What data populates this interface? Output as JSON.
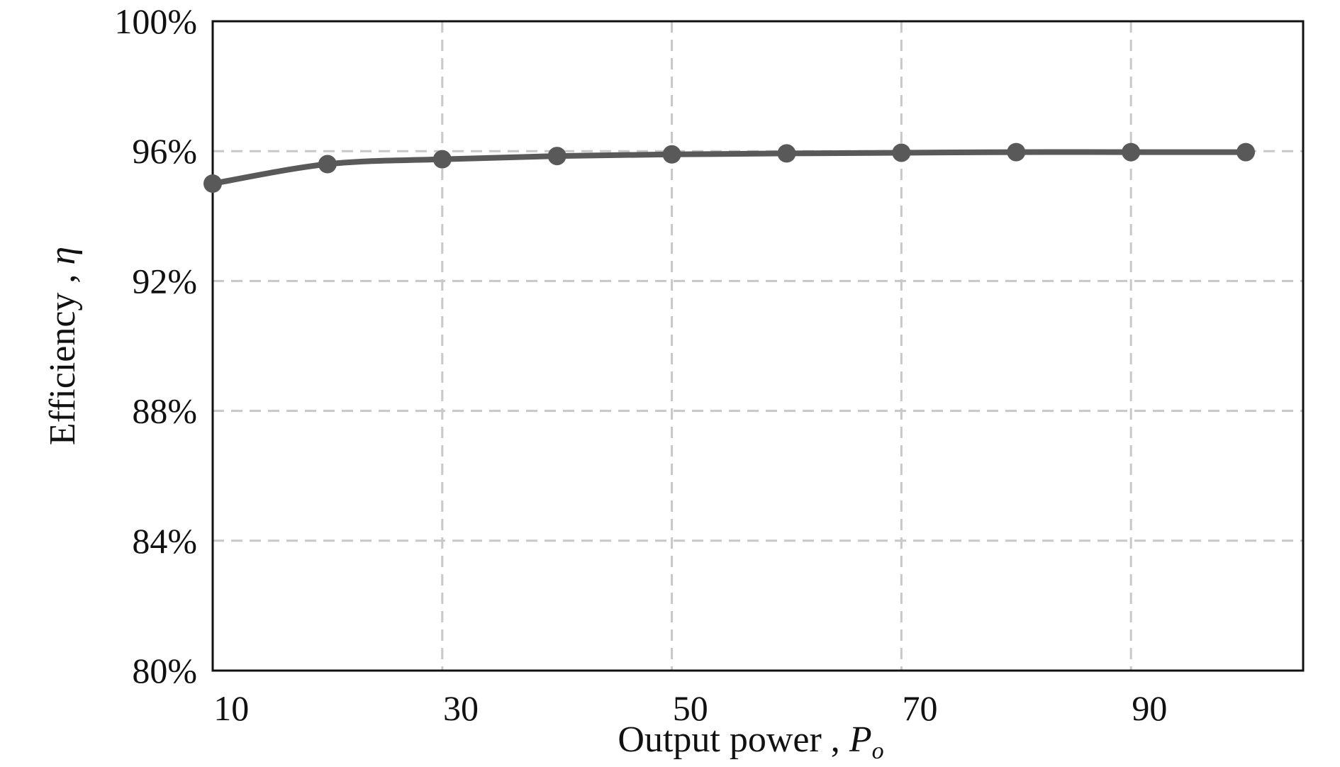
{
  "chart_data": {
    "type": "line",
    "title": "",
    "xlabel": "Output power , ",
    "xlabel_symbol": "P",
    "xlabel_subscript": "o",
    "ylabel": "Efficiency , ",
    "ylabel_symbol": "η",
    "xlim": [
      9,
      104
    ],
    "ylim": [
      0.8,
      1.0
    ],
    "x_ticks": [
      10,
      30,
      50,
      70,
      90
    ],
    "x_tick_labels": [
      "10",
      "30",
      "50",
      "70",
      "90"
    ],
    "y_ticks": [
      0.8,
      0.84,
      0.88,
      0.92,
      0.96,
      1.0
    ],
    "y_tick_labels": [
      "80%",
      "84%",
      "88%",
      "92%",
      "96%",
      "100%"
    ],
    "grid": true,
    "series": [
      {
        "x": [
          9,
          19,
          29,
          39,
          49,
          59,
          69,
          79,
          89,
          99
        ],
        "y": [
          0.95,
          0.956,
          0.9575,
          0.9585,
          0.959,
          0.9593,
          0.9595,
          0.9597,
          0.9597,
          0.9597
        ],
        "color": "#595959"
      }
    ]
  }
}
